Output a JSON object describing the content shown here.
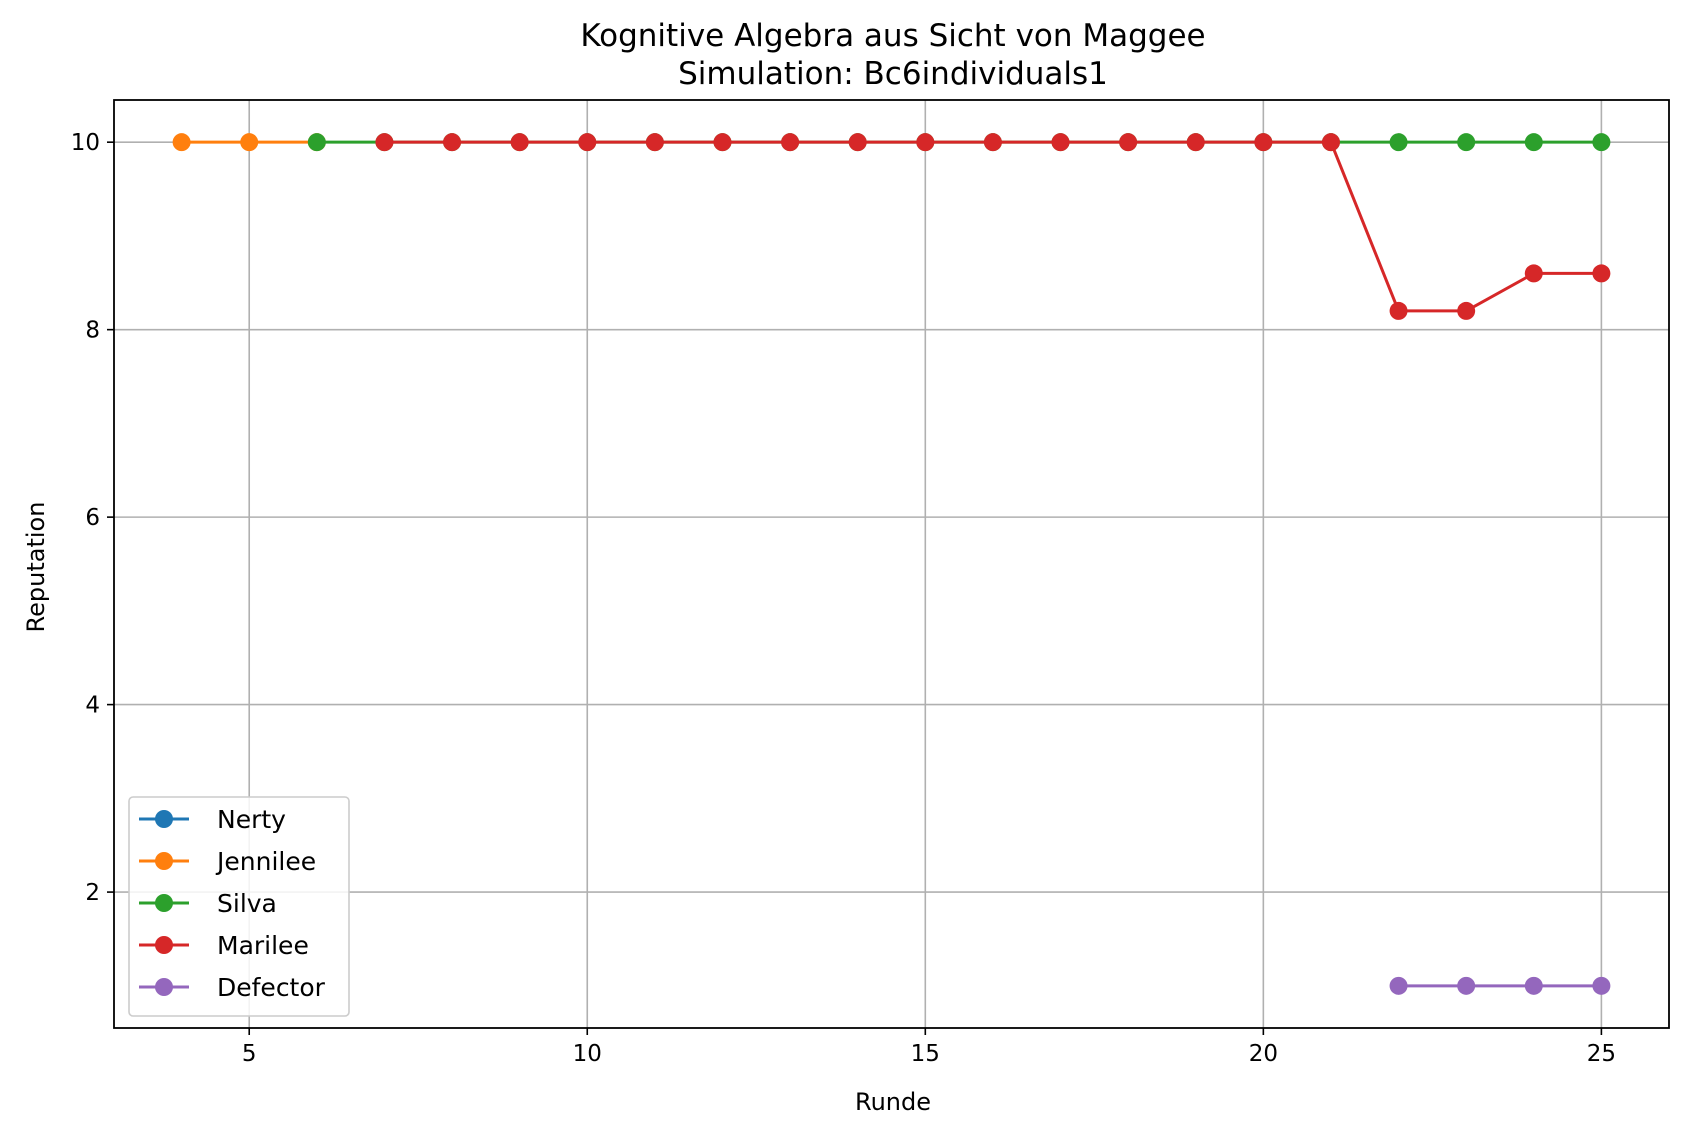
{
  "chart_data": {
    "type": "line",
    "title": "Kognitive Algebra aus Sicht von Maggee",
    "subtitle": "Simulation: Bc6individuals1",
    "xlabel": "Runde",
    "ylabel": "Reputation",
    "xlim": [
      3,
      26
    ],
    "ylim": [
      0.55,
      10.45
    ],
    "xticks": [
      5,
      10,
      15,
      20,
      25
    ],
    "yticks": [
      2,
      4,
      6,
      8,
      10
    ],
    "grid": true,
    "legend_position": "lower-left",
    "series": [
      {
        "name": "Nerty",
        "color": "#1f77b4",
        "x": [],
        "y": []
      },
      {
        "name": "Jennilee",
        "color": "#ff7f0e",
        "x": [
          4,
          5,
          6
        ],
        "y": [
          10,
          10,
          10
        ]
      },
      {
        "name": "Silva",
        "color": "#2ca02c",
        "x": [
          6,
          7,
          8,
          9,
          10,
          11,
          12,
          13,
          14,
          15,
          16,
          17,
          18,
          19,
          20,
          21,
          22,
          23,
          24,
          25
        ],
        "y": [
          10,
          10,
          10,
          10,
          10,
          10,
          10,
          10,
          10,
          10,
          10,
          10,
          10,
          10,
          10,
          10,
          10,
          10,
          10,
          10
        ]
      },
      {
        "name": "Marilee",
        "color": "#d62728",
        "x": [
          7,
          8,
          9,
          10,
          11,
          12,
          13,
          14,
          15,
          16,
          17,
          18,
          19,
          20,
          21,
          22,
          23,
          24,
          25
        ],
        "y": [
          10,
          10,
          10,
          10,
          10,
          10,
          10,
          10,
          10,
          10,
          10,
          10,
          10,
          10,
          10,
          8.2,
          8.2,
          8.6,
          8.6
        ]
      },
      {
        "name": "Defector",
        "color": "#9467bd",
        "x": [
          22,
          23,
          24,
          25
        ],
        "y": [
          1,
          1,
          1,
          1
        ]
      }
    ]
  }
}
